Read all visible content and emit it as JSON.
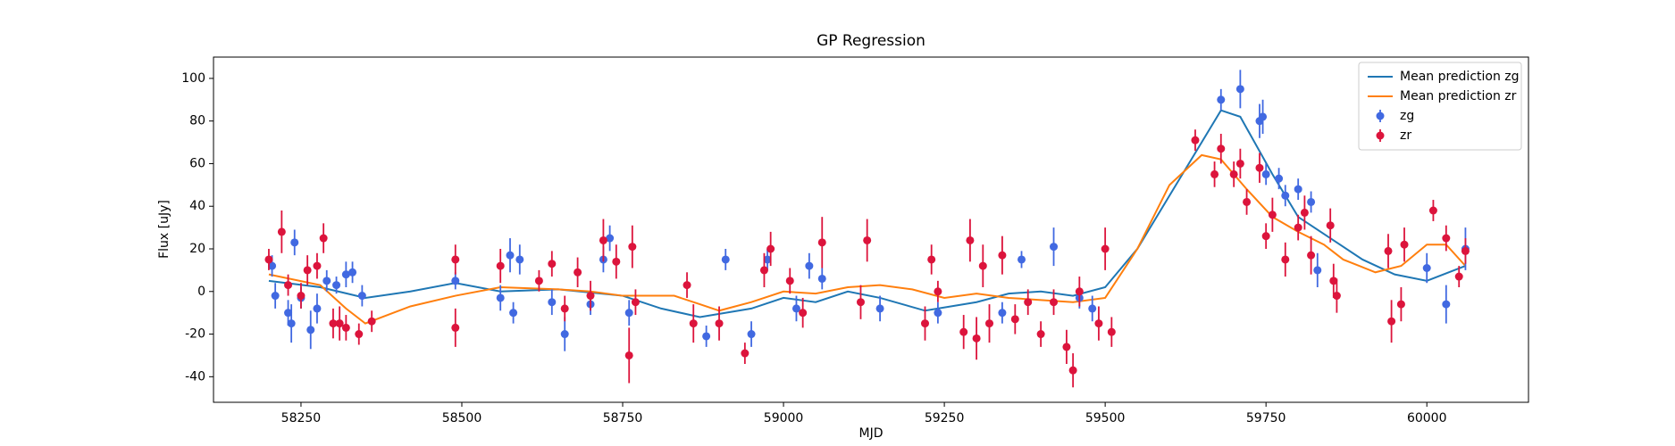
{
  "chart_data": {
    "type": "errorbar",
    "title": "GP Regression",
    "xlabel": "MJD",
    "ylabel": "Flux [uJy]",
    "xlim": [
      58114,
      60158
    ],
    "ylim": [
      -52,
      110
    ],
    "xticks": [
      58250,
      58500,
      58750,
      59000,
      59250,
      59500,
      59750,
      60000
    ],
    "yticks": [
      -40,
      -20,
      0,
      20,
      40,
      60,
      80,
      100
    ],
    "grid": false,
    "legend": "upper right",
    "series": [
      {
        "name": "Mean prediction zg",
        "kind": "line",
        "color": "#1f77b4",
        "x": [
          58200,
          58280,
          58350,
          58420,
          58490,
          58560,
          58650,
          58750,
          58810,
          58870,
          58950,
          59000,
          59050,
          59100,
          59150,
          59220,
          59300,
          59350,
          59400,
          59450,
          59500,
          59550,
          59620,
          59680,
          59710,
          59760,
          59800,
          59850,
          59900,
          59950,
          60000,
          60060
        ],
        "values": [
          5,
          2,
          -3,
          0,
          4,
          0,
          1,
          -2,
          -8,
          -12,
          -8,
          -3,
          -5,
          0,
          -3,
          -9,
          -5,
          -1,
          0,
          -2,
          2,
          20,
          55,
          85,
          82,
          55,
          35,
          25,
          15,
          8,
          5,
          12
        ]
      },
      {
        "name": "Mean prediction zr",
        "kind": "line",
        "color": "#ff7f0e",
        "x": [
          58200,
          58280,
          58320,
          58350,
          58420,
          58490,
          58560,
          58650,
          58700,
          58750,
          58830,
          58870,
          58900,
          58950,
          59000,
          59050,
          59100,
          59150,
          59200,
          59250,
          59300,
          59350,
          59400,
          59450,
          59500,
          59550,
          59600,
          59650,
          59680,
          59720,
          59760,
          59800,
          59840,
          59870,
          59920,
          59960,
          60000,
          60030,
          60060
        ],
        "values": [
          8,
          3,
          -8,
          -15,
          -7,
          -2,
          2,
          1,
          0,
          -2,
          -2,
          -6,
          -9,
          -5,
          0,
          -1,
          2,
          3,
          1,
          -3,
          -1,
          -3,
          -4,
          -5,
          -3,
          20,
          50,
          64,
          62,
          48,
          35,
          28,
          22,
          15,
          9,
          12,
          22,
          22,
          12
        ]
      },
      {
        "name": "zg",
        "kind": "points",
        "color": "#4169e1",
        "x": [
          58205,
          58210,
          58230,
          58235,
          58240,
          58250,
          58265,
          58275,
          58290,
          58305,
          58320,
          58330,
          58345,
          58490,
          58560,
          58575,
          58580,
          58590,
          58640,
          58660,
          58700,
          58720,
          58730,
          58760,
          58880,
          58910,
          58950,
          58975,
          59020,
          59040,
          59060,
          59150,
          59240,
          59340,
          59370,
          59420,
          59460,
          59480,
          59680,
          59710,
          59740,
          59745,
          59750,
          59770,
          59780,
          59800,
          59820,
          59830,
          60000,
          60030,
          60060
        ],
        "values": [
          12,
          -2,
          -10,
          -15,
          23,
          -3,
          -18,
          -8,
          5,
          3,
          8,
          9,
          -2,
          5,
          -3,
          17,
          -10,
          15,
          -5,
          -20,
          -6,
          15,
          25,
          -10,
          -21,
          15,
          -20,
          15,
          -8,
          12,
          6,
          -8,
          -10,
          -10,
          15,
          21,
          -3,
          -8,
          90,
          95,
          80,
          82,
          55,
          53,
          45,
          48,
          42,
          10,
          11,
          -6,
          20
        ],
        "errors": [
          5,
          6,
          6,
          9,
          6,
          5,
          9,
          7,
          5,
          4,
          6,
          5,
          5,
          4,
          6,
          8,
          5,
          7,
          6,
          8,
          5,
          6,
          6,
          6,
          5,
          5,
          6,
          5,
          6,
          6,
          5,
          6,
          5,
          5,
          4,
          9,
          5,
          6,
          5,
          9,
          8,
          8,
          5,
          5,
          5,
          5,
          5,
          8,
          7,
          9,
          10
        ]
      },
      {
        "name": "zr",
        "kind": "points",
        "color": "#dc143c",
        "x": [
          58200,
          58220,
          58230,
          58250,
          58260,
          58275,
          58285,
          58300,
          58310,
          58320,
          58340,
          58360,
          58490,
          58490,
          58560,
          58620,
          58640,
          58660,
          58680,
          58700,
          58720,
          58740,
          58760,
          58765,
          58770,
          58850,
          58860,
          58900,
          58940,
          58970,
          58980,
          59010,
          59030,
          59060,
          59120,
          59130,
          59220,
          59230,
          59240,
          59280,
          59290,
          59300,
          59310,
          59320,
          59340,
          59360,
          59380,
          59400,
          59420,
          59440,
          59450,
          59460,
          59490,
          59500,
          59510,
          59640,
          59670,
          59680,
          59700,
          59710,
          59720,
          59740,
          59750,
          59760,
          59780,
          59800,
          59810,
          59820,
          59850,
          59855,
          59860,
          59940,
          59945,
          59960,
          59965,
          60010,
          60030,
          60050,
          60060
        ],
        "values": [
          15,
          28,
          3,
          -2,
          10,
          12,
          25,
          -15,
          -15,
          -17,
          -20,
          -14,
          15,
          -17,
          12,
          5,
          13,
          -8,
          9,
          -2,
          24,
          14,
          -30,
          21,
          -5,
          3,
          -15,
          -15,
          -29,
          10,
          20,
          5,
          -10,
          23,
          -5,
          24,
          -15,
          15,
          0,
          -19,
          24,
          -22,
          12,
          -15,
          17,
          -13,
          -5,
          -20,
          -5,
          -26,
          -37,
          0,
          -15,
          20,
          -19,
          71,
          55,
          67,
          55,
          60,
          42,
          58,
          26,
          36,
          15,
          30,
          37,
          17,
          31,
          5,
          -2,
          19,
          -14,
          -6,
          22,
          38,
          25,
          7,
          19
        ],
        "errors": [
          5,
          10,
          5,
          6,
          7,
          6,
          7,
          7,
          8,
          6,
          5,
          5,
          7,
          9,
          8,
          5,
          6,
          6,
          7,
          7,
          10,
          8,
          13,
          10,
          6,
          6,
          9,
          8,
          5,
          8,
          8,
          6,
          7,
          12,
          8,
          10,
          8,
          7,
          5,
          8,
          10,
          10,
          10,
          9,
          9,
          7,
          6,
          6,
          6,
          8,
          8,
          7,
          8,
          10,
          7,
          5,
          6,
          7,
          6,
          7,
          6,
          7,
          6,
          8,
          8,
          6,
          8,
          9,
          8,
          8,
          8,
          8,
          10,
          8,
          8,
          5,
          6,
          5,
          6
        ]
      }
    ]
  }
}
